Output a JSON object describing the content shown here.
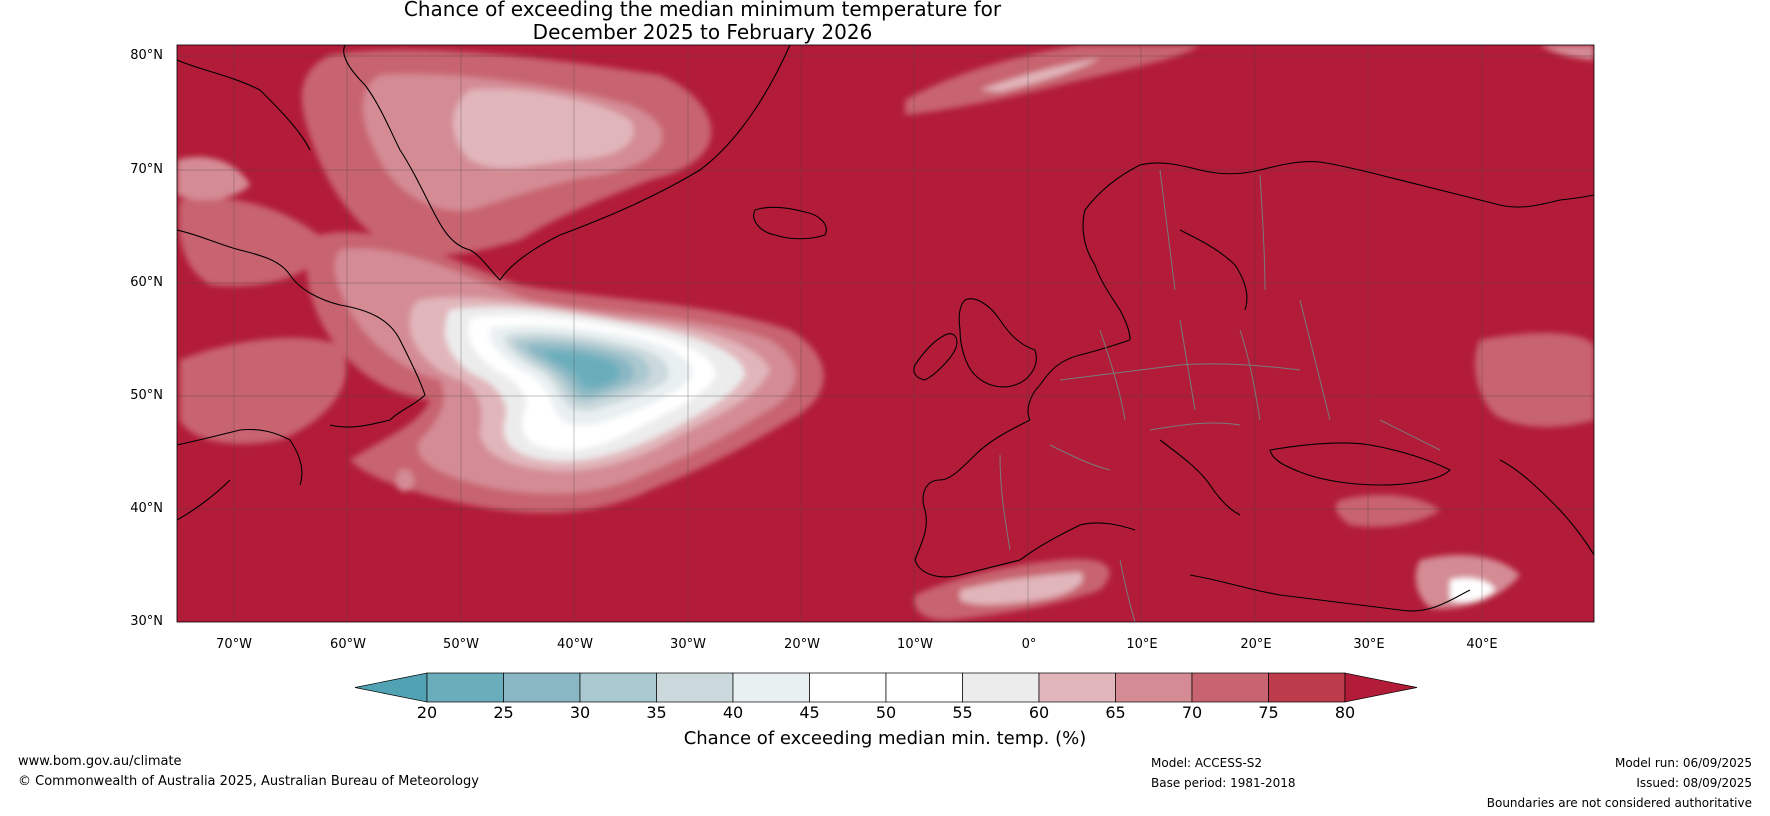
{
  "title": {
    "line1": "Chance of exceeding the median minimum temperature for",
    "line2": "December 2025 to February 2026"
  },
  "map": {
    "region": "North Atlantic and Europe",
    "lat_range": [
      30,
      81
    ],
    "lon_range": [
      -75,
      50
    ],
    "lat_ticks": [
      "80°N",
      "70°N",
      "60°N",
      "50°N",
      "40°N",
      "30°N"
    ],
    "lon_ticks": [
      "70°W",
      "60°W",
      "50°W",
      "40°W",
      "30°W",
      "20°W",
      "10°W",
      "0°",
      "10°E",
      "20°E",
      "30°E",
      "40°E"
    ],
    "background_class_color": "#b21c38",
    "gridlines": true
  },
  "colorbar": {
    "label": "Chance of exceeding median min. temp. (%)",
    "ticks": [
      "20",
      "25",
      "30",
      "35",
      "40",
      "45",
      "50",
      "55",
      "60",
      "65",
      "70",
      "75",
      "80"
    ],
    "colors": [
      "#51a3b3",
      "#6aaebb",
      "#89b7c3",
      "#aac8cf",
      "#cbd9dd",
      "#e9f0f1",
      "#ffffff",
      "#ffffff",
      "#ececec",
      "#e1b6bb",
      "#d48b94",
      "#c8646f",
      "#bd3c4c",
      "#b21c38"
    ],
    "extend": "both"
  },
  "footer": {
    "website": "www.bom.gov.au/climate",
    "copyright": "© Commonwealth of Australia 2025, Australian Bureau of Meteorology",
    "model": "Model: ACCESS-S2",
    "base_period": "Base period: 1981-2018",
    "model_run": "Model run: 06/09/2025",
    "issued": "Issued: 08/09/2025",
    "disclaimer": "Boundaries are not considered authoritative"
  }
}
